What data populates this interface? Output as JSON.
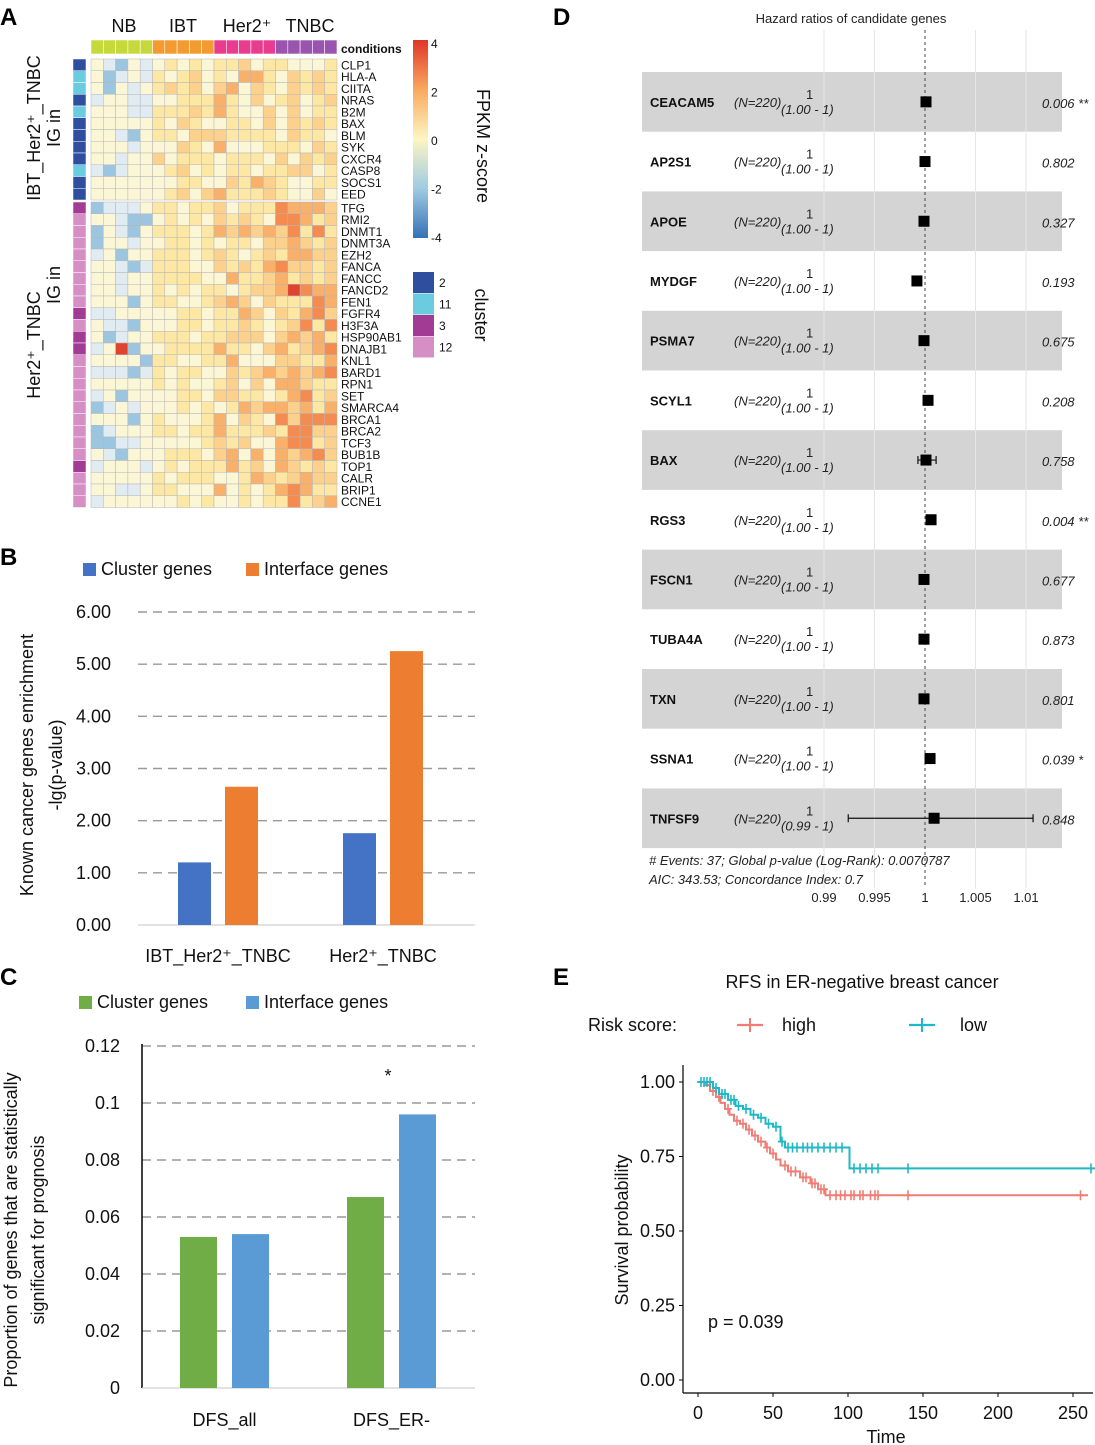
{
  "chart_data": [
    {
      "id": "A",
      "type": "heatmap",
      "panel_label": "A",
      "condition_groups": [
        "NB",
        "IBT",
        "Her2⁺",
        "TNBC"
      ],
      "condition_colors": [
        "#c5d93a",
        "#f39a30",
        "#ea3c8e",
        "#9a54ad"
      ],
      "conditions_label": "conditions",
      "colorbar_title": "FPKM z-score",
      "colorbar_ticks": [
        "4",
        "2",
        "0",
        "-2",
        "-4"
      ],
      "cluster_title": "cluster",
      "cluster_legend": [
        {
          "label": "2",
          "color": "#2f4e9e"
        },
        {
          "label": "11",
          "color": "#6bcbdf"
        },
        {
          "label": "3",
          "color": "#a23b93"
        },
        {
          "label": "12",
          "color": "#d68fc4"
        }
      ],
      "row_group_labels": [
        {
          "line1": "IG in",
          "line2": "IBT_Her2⁺_TNBC"
        },
        {
          "line1": "IG in",
          "line2": "Her2⁺_TNBC"
        }
      ],
      "genes_group1": [
        "CLP1",
        "HLA-A",
        "CIITA",
        "NRAS",
        "B2M",
        "BAX",
        "BLM",
        "SYK",
        "CXCR4",
        "CASP8",
        "SOCS1",
        "EED"
      ],
      "genes_group2": [
        "TFG",
        "RMI2",
        "DNMT1",
        "DNMT3A",
        "EZH2",
        "FANCA",
        "FANCC",
        "FANCD2",
        "FEN1",
        "FGFR4",
        "H3F3A",
        "HSP90AB1",
        "DNAJB1",
        "KNL1",
        "BARD1",
        "RPN1",
        "SET",
        "SMARCA4",
        "BRCA1",
        "BRCA2",
        "TCF3",
        "BUB1B",
        "TOP1",
        "CALR",
        "BRIP1",
        "CCNE1"
      ]
    },
    {
      "id": "B",
      "type": "bar",
      "panel_label": "B",
      "categories": [
        "IBT_Her2⁺_TNBC",
        "Her2⁺_TNBC"
      ],
      "series": [
        {
          "name": "Cluster genes",
          "color": "#4472c4",
          "values": [
            1.2,
            1.76
          ]
        },
        {
          "name": "Interface genes",
          "color": "#ed7d31",
          "values": [
            2.65,
            5.25
          ]
        }
      ],
      "ylabel_line1": "Known cancer genes enrichment",
      "ylabel_line2": "-lg(p-value)",
      "ylim": [
        0,
        6
      ],
      "yticks": [
        "0.00",
        "1.00",
        "2.00",
        "3.00",
        "4.00",
        "5.00",
        "6.00"
      ]
    },
    {
      "id": "C",
      "type": "bar",
      "panel_label": "C",
      "categories": [
        "DFS_all",
        "DFS_ER-"
      ],
      "series": [
        {
          "name": "Cluster genes",
          "color": "#70ad47",
          "values": [
            0.053,
            0.067
          ]
        },
        {
          "name": "Interface genes",
          "color": "#5b9bd5",
          "values": [
            0.054,
            0.096
          ]
        }
      ],
      "ylabel_line1": "Proportion of genes that are statistically",
      "ylabel_line2": "significant for prognosis",
      "ylim": [
        0,
        0.12
      ],
      "yticks": [
        "0",
        "0.02",
        "0.04",
        "0.06",
        "0.08",
        "0.1",
        "0.12"
      ],
      "annotation": "*"
    },
    {
      "id": "D",
      "type": "scatter",
      "subtype": "forest-plot",
      "panel_label": "D",
      "title": "Hazard ratios of candidate genes",
      "xlim": [
        0.99,
        1.01
      ],
      "xticks": [
        "0.99",
        "0.995",
        "1",
        "1.005",
        "1.01"
      ],
      "rows": [
        {
          "gene": "CEACAM5",
          "n": "(N=220)",
          "hr_text": "1",
          "ci_text": "(1.00 - 1)",
          "p_text": "0.006 **",
          "hr": 1.0001,
          "lo": 1.0,
          "hi": 1.0003
        },
        {
          "gene": "AP2S1",
          "n": "(N=220)",
          "hr_text": "1",
          "ci_text": "(1.00 - 1)",
          "p_text": "0.802",
          "hr": 1.0,
          "lo": 0.9999,
          "hi": 1.0001
        },
        {
          "gene": "APOE",
          "n": "(N=220)",
          "hr_text": "1",
          "ci_text": "(1.00 - 1)",
          "p_text": "0.327",
          "hr": 0.9999,
          "lo": 0.9998,
          "hi": 1.0001
        },
        {
          "gene": "MYDGF",
          "n": "(N=220)",
          "hr_text": "1",
          "ci_text": "(1.00 - 1)",
          "p_text": "0.193",
          "hr": 0.9992,
          "lo": 0.9988,
          "hi": 0.9996
        },
        {
          "gene": "PSMA7",
          "n": "(N=220)",
          "hr_text": "1",
          "ci_text": "(1.00 - 1)",
          "p_text": "0.675",
          "hr": 0.9999,
          "lo": 0.9997,
          "hi": 1.0001
        },
        {
          "gene": "SCYL1",
          "n": "(N=220)",
          "hr_text": "1",
          "ci_text": "(1.00 - 1)",
          "p_text": "0.208",
          "hr": 1.0003,
          "lo": 1.0001,
          "hi": 1.0005
        },
        {
          "gene": "BAX",
          "n": "(N=220)",
          "hr_text": "1",
          "ci_text": "(1.00 - 1)",
          "p_text": "0.758",
          "hr": 1.0001,
          "lo": 0.9993,
          "hi": 1.0011
        },
        {
          "gene": "RGS3",
          "n": "(N=220)",
          "hr_text": "1",
          "ci_text": "(1.00 - 1)",
          "p_text": "0.004 **",
          "hr": 1.0006,
          "lo": 1.0004,
          "hi": 1.0008
        },
        {
          "gene": "FSCN1",
          "n": "(N=220)",
          "hr_text": "1",
          "ci_text": "(1.00 - 1)",
          "p_text": "0.677",
          "hr": 0.9999,
          "lo": 0.9997,
          "hi": 1.0001
        },
        {
          "gene": "TUBA4A",
          "n": "(N=220)",
          "hr_text": "1",
          "ci_text": "(1.00 - 1)",
          "p_text": "0.873",
          "hr": 0.9999,
          "lo": 0.9997,
          "hi": 1.0001
        },
        {
          "gene": "TXN",
          "n": "(N=220)",
          "hr_text": "1",
          "ci_text": "(1.00 - 1)",
          "p_text": "0.801",
          "hr": 0.9999,
          "lo": 0.9997,
          "hi": 1.0001
        },
        {
          "gene": "SSNA1",
          "n": "(N=220)",
          "hr_text": "1",
          "ci_text": "(1.00 - 1)",
          "p_text": "0.039 *",
          "hr": 1.0005,
          "lo": 1.0003,
          "hi": 1.0007
        },
        {
          "gene": "TNFSF9",
          "n": "(N=220)",
          "hr_text": "1",
          "ci_text": "(0.99 - 1)",
          "p_text": "0.848",
          "hr": 1.0009,
          "lo": 0.9924,
          "hi": 1.0107
        }
      ],
      "footer_line1": "# Events: 37; Global p-value (Log-Rank): 0.0070787",
      "footer_line2": "AIC: 343.53; Concordance Index: 0.7"
    },
    {
      "id": "E",
      "type": "line",
      "subtype": "kaplan-meier",
      "panel_label": "E",
      "title": "RFS in ER-negative breast cancer",
      "legend_title": "Risk score:",
      "series": [
        {
          "name": "high",
          "color": "#f07c74",
          "steps": [
            [
              0,
              1.0
            ],
            [
              5,
              0.99
            ],
            [
              8,
              0.97
            ],
            [
              12,
              0.95
            ],
            [
              15,
              0.93
            ],
            [
              18,
              0.91
            ],
            [
              21,
              0.89
            ],
            [
              24,
              0.87
            ],
            [
              28,
              0.86
            ],
            [
              32,
              0.84
            ],
            [
              36,
              0.82
            ],
            [
              40,
              0.8
            ],
            [
              45,
              0.78
            ],
            [
              48,
              0.76
            ],
            [
              52,
              0.74
            ],
            [
              55,
              0.72
            ],
            [
              60,
              0.7
            ],
            [
              68,
              0.68
            ],
            [
              75,
              0.66
            ],
            [
              80,
              0.64
            ],
            [
              85,
              0.62
            ],
            [
              90,
              0.62
            ],
            [
              260,
              0.62
            ]
          ],
          "censor": [
            10,
            14,
            20,
            26,
            30,
            34,
            38,
            42,
            46,
            50,
            58,
            62,
            65,
            70,
            72,
            76,
            78,
            82,
            84,
            88,
            92,
            95,
            98,
            102,
            104,
            108,
            110,
            115,
            118,
            120,
            140,
            255
          ]
        },
        {
          "name": "low",
          "color": "#1fb9c5",
          "steps": [
            [
              0,
              1.0
            ],
            [
              10,
              0.98
            ],
            [
              14,
              0.96
            ],
            [
              20,
              0.94
            ],
            [
              25,
              0.92
            ],
            [
              30,
              0.91
            ],
            [
              35,
              0.89
            ],
            [
              40,
              0.88
            ],
            [
              45,
              0.86
            ],
            [
              50,
              0.85
            ],
            [
              55,
              0.8
            ],
            [
              58,
              0.78
            ],
            [
              100,
              0.78
            ],
            [
              101,
              0.71
            ],
            [
              265,
              0.71
            ]
          ],
          "censor": [
            2,
            4,
            6,
            8,
            12,
            16,
            18,
            22,
            24,
            27,
            32,
            37,
            42,
            47,
            52,
            56,
            60,
            63,
            66,
            70,
            73,
            76,
            80,
            84,
            88,
            92,
            96,
            104,
            108,
            112,
            116,
            120,
            140,
            262
          ]
        }
      ],
      "xlabel": "Time",
      "ylabel": "Survival probability",
      "xlim": [
        0,
        262
      ],
      "ylim": [
        0,
        1
      ],
      "xticks": [
        "0",
        "50",
        "100",
        "150",
        "200",
        "250"
      ],
      "yticks": [
        "0.00",
        "0.25",
        "0.50",
        "0.75",
        "1.00"
      ],
      "annotation": "p = 0.039"
    }
  ]
}
